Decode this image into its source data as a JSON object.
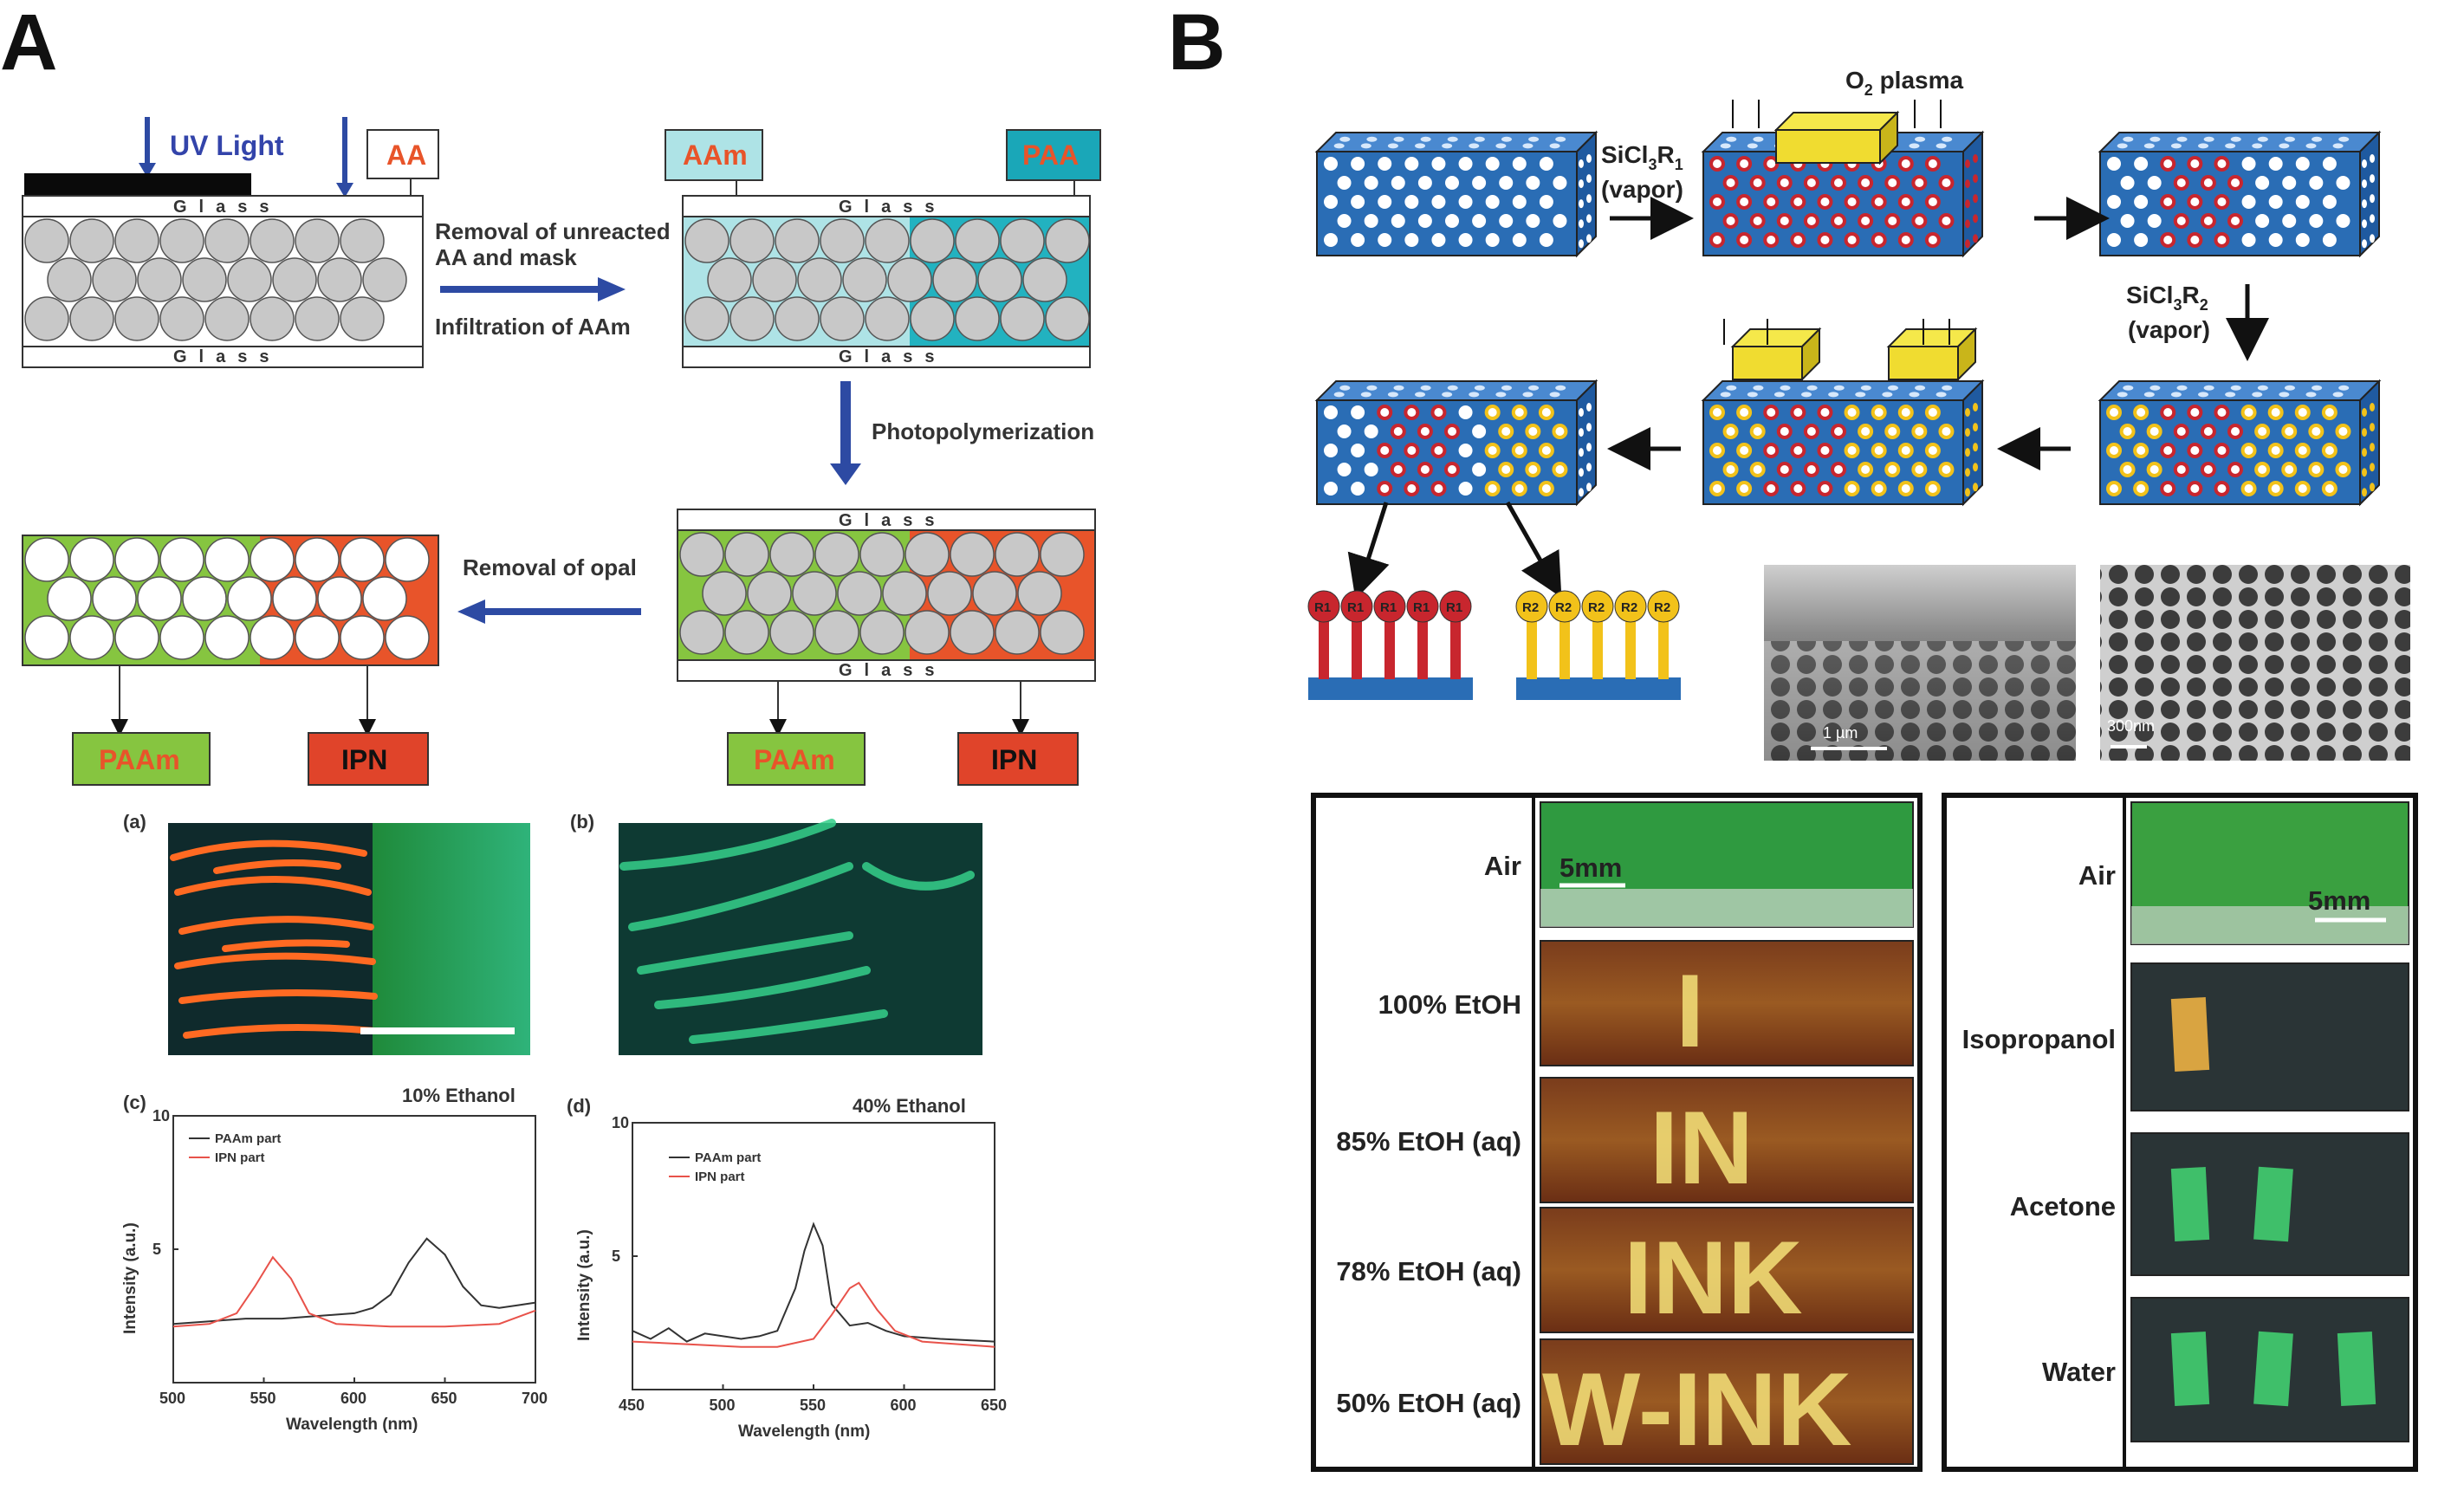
{
  "panels": {
    "a": "A",
    "b": "B"
  },
  "scheme_a": {
    "uv": "UV Light",
    "aa": "AA",
    "aam": "AAm",
    "paa": "PAA",
    "glass": "Glass",
    "step1a": "Removal of unreacted",
    "step1b": "AA and mask",
    "step1c": "Infiltration of AAm",
    "step2": "Photopolymerization",
    "step3": "Removal of opal",
    "paam": "PAAm",
    "ipn": "IPN"
  },
  "photos_a": {
    "a": "(a)",
    "b": "(b)"
  },
  "charts": {
    "c": {
      "tag": "(c)",
      "title": "10% Ethanol",
      "xlabel": "Wavelength (nm)",
      "ylabel": "Intensity (a.u.)"
    },
    "d": {
      "tag": "(d)",
      "title": "40% Ethanol",
      "xlabel": "Wavelength (nm)",
      "ylabel": "Intensity (a.u.)"
    }
  },
  "chart_data": [
    {
      "type": "line",
      "title": "10% Ethanol",
      "xlabel": "Wavelength (nm)",
      "ylabel": "Intensity (a.u.)",
      "xlim": [
        500,
        700
      ],
      "ylim": [
        0,
        10
      ],
      "xticks": [
        500,
        550,
        600,
        650,
        700
      ],
      "yticks": [
        5,
        10
      ],
      "legend": "top-left",
      "series": [
        {
          "name": "PAAm part",
          "color": "#333333",
          "x": [
            500,
            520,
            540,
            560,
            580,
            600,
            610,
            620,
            630,
            640,
            650,
            660,
            670,
            680,
            690,
            700
          ],
          "y": [
            2.2,
            2.3,
            2.4,
            2.4,
            2.5,
            2.6,
            2.8,
            3.3,
            4.5,
            5.4,
            4.8,
            3.6,
            2.9,
            2.8,
            2.9,
            3.0
          ]
        },
        {
          "name": "IPN part",
          "color": "#e8524a",
          "x": [
            500,
            520,
            535,
            545,
            555,
            565,
            575,
            590,
            620,
            650,
            680,
            700
          ],
          "y": [
            2.1,
            2.2,
            2.6,
            3.6,
            4.7,
            3.9,
            2.6,
            2.2,
            2.1,
            2.1,
            2.2,
            2.7
          ]
        }
      ]
    },
    {
      "type": "line",
      "title": "40% Ethanol",
      "xlabel": "Wavelength (nm)",
      "ylabel": "Intensity (a.u.)",
      "xlim": [
        450,
        650
      ],
      "ylim": [
        0,
        10
      ],
      "xticks": [
        450,
        500,
        550,
        600,
        650
      ],
      "yticks": [
        5,
        10
      ],
      "legend": "top-left",
      "series": [
        {
          "name": "PAAm part",
          "color": "#333333",
          "x": [
            450,
            460,
            470,
            480,
            490,
            500,
            510,
            520,
            530,
            540,
            545,
            550,
            555,
            560,
            570,
            580,
            590,
            600,
            620,
            650
          ],
          "y": [
            2.2,
            1.9,
            2.3,
            1.8,
            2.1,
            2.0,
            1.9,
            2.0,
            2.2,
            3.8,
            5.2,
            6.2,
            5.4,
            3.2,
            2.4,
            2.5,
            2.2,
            2.0,
            1.9,
            1.8
          ]
        },
        {
          "name": "IPN part",
          "color": "#e8524a",
          "x": [
            450,
            480,
            510,
            530,
            550,
            560,
            570,
            575,
            585,
            595,
            610,
            650
          ],
          "y": [
            1.8,
            1.7,
            1.6,
            1.6,
            1.9,
            2.8,
            3.8,
            4.0,
            3.0,
            2.2,
            1.8,
            1.6
          ]
        }
      ]
    }
  ],
  "scheme_b": {
    "o2": "O",
    "o2sub": "2",
    "plasma": " plasma",
    "v1a": "SiCl",
    "v1b": "3",
    "v1c": "R",
    "v1d": "1",
    "vapor": "(vapor)",
    "v2b": "3",
    "v2d": "2",
    "r1": "R1",
    "r2": "R2",
    "sem1": "1 µm",
    "sem2": "300nm"
  },
  "photos_b_left": {
    "rows": [
      "Air",
      "100% EtOH",
      "85% EtOH (aq)",
      "78% EtOH (aq)",
      "50% EtOH (aq)"
    ],
    "scale": "5mm",
    "inks": [
      "I",
      "IN",
      "INK",
      "W-INK"
    ]
  },
  "photos_b_right": {
    "rows": [
      "Air",
      "Isopropanol",
      "Acetone",
      "Water"
    ],
    "scale": "5mm"
  },
  "colors": {
    "blue": "#2a6db5",
    "red": "#c8262e",
    "yellow": "#f2c21a",
    "green": "#86c540",
    "orange": "#e8542a",
    "arrow": "#2d4aa3"
  }
}
